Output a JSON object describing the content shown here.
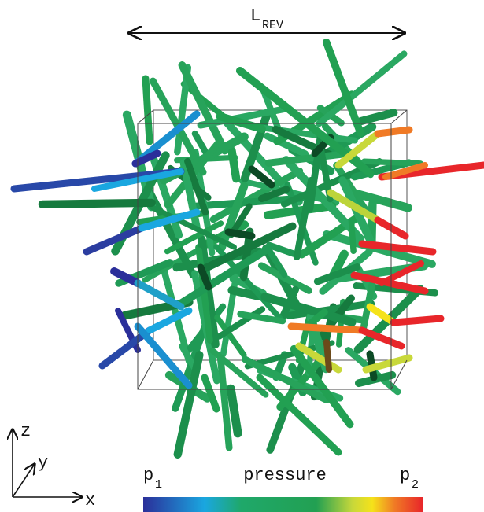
{
  "scale_label": {
    "main": "L",
    "subscript": "REV"
  },
  "axes": {
    "z": "z",
    "y": "y",
    "x": "x"
  },
  "colorbar": {
    "left": {
      "main": "p",
      "subscript": "1"
    },
    "title": "pressure",
    "right": {
      "main": "p",
      "subscript": "2"
    }
  }
}
